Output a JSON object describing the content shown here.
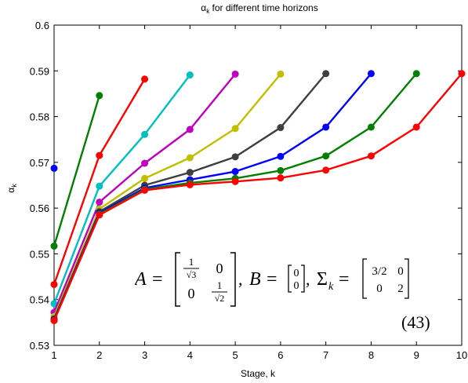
{
  "chart_data": {
    "type": "line",
    "title_base": "α",
    "title_sub": "k",
    "title_rest": " for different time horizons",
    "xlabel": "Stage, k",
    "ylabel_base": "α",
    "ylabel_sub": "k",
    "xlim": [
      1,
      10
    ],
    "ylim": [
      0.53,
      0.6
    ],
    "xticks": [
      1,
      2,
      3,
      4,
      5,
      6,
      7,
      8,
      9,
      10
    ],
    "yticks": [
      0.53,
      0.54,
      0.55,
      0.56,
      0.57,
      0.58,
      0.59,
      0.6
    ],
    "ytick_labels": [
      "0.53",
      "0.54",
      "0.55",
      "0.56",
      "0.57",
      "0.58",
      "0.59",
      "0.6"
    ],
    "grid": false,
    "legend": "none",
    "series": [
      {
        "color": "#0000ff",
        "x": [
          1
        ],
        "y": [
          0.5687
        ]
      },
      {
        "color": "#007f00",
        "x": [
          1,
          2
        ],
        "y": [
          0.5517,
          0.5846
        ]
      },
      {
        "color": "#ff0000",
        "x": [
          1,
          2,
          3
        ],
        "y": [
          0.5433,
          0.5715,
          0.5882
        ]
      },
      {
        "color": "#00bfbf",
        "x": [
          1,
          2,
          3,
          4
        ],
        "y": [
          0.5391,
          0.5648,
          0.5761,
          0.5891
        ]
      },
      {
        "color": "#bf00bf",
        "x": [
          1,
          2,
          3,
          4,
          5
        ],
        "y": [
          0.5372,
          0.5613,
          0.5698,
          0.5772,
          0.5893
        ]
      },
      {
        "color": "#bfbf00",
        "x": [
          1,
          2,
          3,
          4,
          5,
          6
        ],
        "y": [
          0.5363,
          0.5598,
          0.5665,
          0.571,
          0.5774,
          0.5893
        ]
      },
      {
        "color": "#3f3f3f",
        "x": [
          1,
          2,
          3,
          4,
          5,
          6,
          7
        ],
        "y": [
          0.5358,
          0.5592,
          0.565,
          0.5678,
          0.5712,
          0.5776,
          0.5894
        ]
      },
      {
        "color": "#0000ff",
        "x": [
          1,
          2,
          3,
          4,
          5,
          6,
          7,
          8
        ],
        "y": [
          0.5356,
          0.5589,
          0.5644,
          0.5662,
          0.568,
          0.5713,
          0.5777,
          0.5894
        ]
      },
      {
        "color": "#007f00",
        "x": [
          1,
          2,
          3,
          4,
          5,
          6,
          7,
          8,
          9
        ],
        "y": [
          0.5355,
          0.5587,
          0.5641,
          0.5655,
          0.5665,
          0.5682,
          0.5714,
          0.5777,
          0.5894
        ]
      },
      {
        "color": "#ff0000",
        "x": [
          1,
          2,
          3,
          4,
          5,
          6,
          7,
          8,
          9,
          10
        ],
        "y": [
          0.5354,
          0.5585,
          0.5639,
          0.5651,
          0.5658,
          0.5666,
          0.5683,
          0.5714,
          0.5777,
          0.5894
        ]
      }
    ]
  },
  "formula": {
    "A_label": "A",
    "A_r1c1_num": "1",
    "A_r1c1_den": "√3",
    "A_r1c2": "0",
    "A_r2c1": "0",
    "A_r2c2_num": "1",
    "A_r2c2_den": "√2",
    "sep1": ", ",
    "B_label": "B",
    "B_r1": "0",
    "B_r2": "0",
    "sep2": ", ",
    "S_label": "Σ",
    "S_sub": "k",
    "S_r1c1": "3/2",
    "S_r1c2": "0",
    "S_r2c1": "0",
    "S_r2c2": "2",
    "equation_number": "(43)"
  }
}
